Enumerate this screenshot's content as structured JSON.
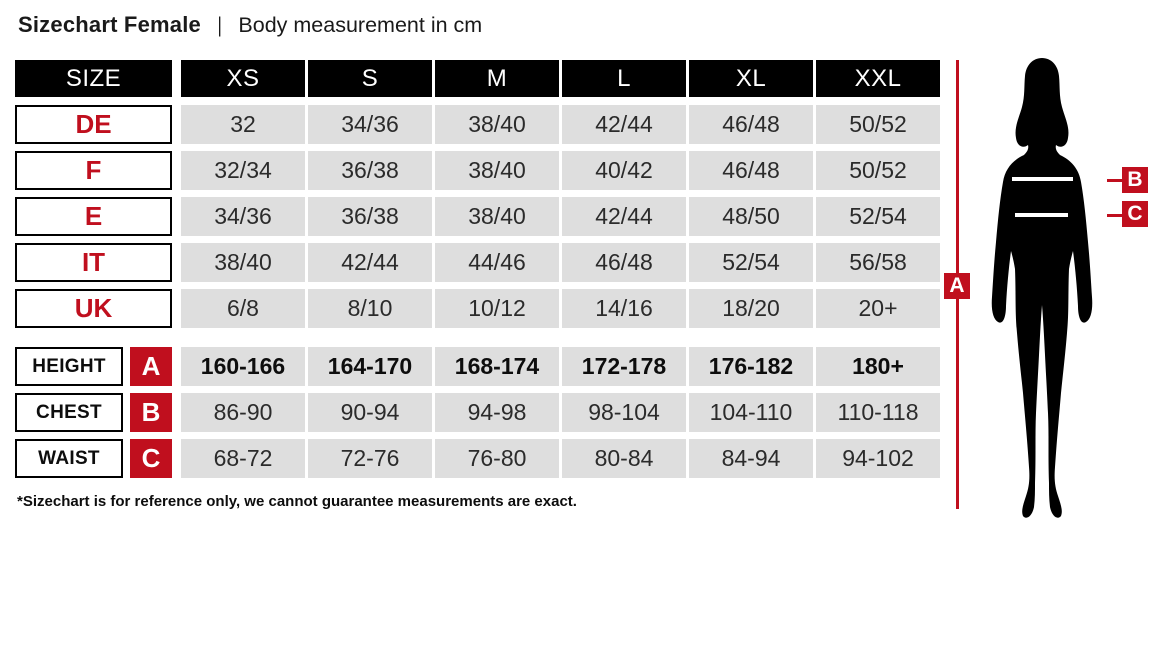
{
  "title": {
    "main": "Sizechart Female",
    "separator": "|",
    "subtitle": "Body measurement in cm"
  },
  "table": {
    "size_header": "SIZE",
    "columns": [
      "XS",
      "S",
      "M",
      "L",
      "XL",
      "XXL"
    ],
    "region_rows": [
      {
        "label": "DE",
        "values": [
          "32",
          "34/36",
          "38/40",
          "42/44",
          "46/48",
          "50/52"
        ]
      },
      {
        "label": "F",
        "values": [
          "32/34",
          "36/38",
          "38/40",
          "40/42",
          "46/48",
          "50/52"
        ]
      },
      {
        "label": "E",
        "values": [
          "34/36",
          "36/38",
          "38/40",
          "42/44",
          "48/50",
          "52/54"
        ]
      },
      {
        "label": "IT",
        "values": [
          "38/40",
          "42/44",
          "44/46",
          "46/48",
          "52/54",
          "56/58"
        ]
      },
      {
        "label": "UK",
        "values": [
          "6/8",
          "8/10",
          "10/12",
          "14/16",
          "18/20",
          "20+"
        ]
      }
    ],
    "measurement_rows": [
      {
        "label": "HEIGHT",
        "marker": "A",
        "bold": true,
        "values": [
          "160-166",
          "164-170",
          "168-174",
          "172-178",
          "176-182",
          "180+"
        ]
      },
      {
        "label": "CHEST",
        "marker": "B",
        "bold": false,
        "values": [
          "86-90",
          "90-94",
          "94-98",
          "98-104",
          "104-110",
          "110-118"
        ]
      },
      {
        "label": "WAIST",
        "marker": "C",
        "bold": false,
        "values": [
          "68-72",
          "72-76",
          "76-80",
          "80-84",
          "84-94",
          "94-102"
        ]
      }
    ]
  },
  "footnote": "*Sizechart is for reference only, we cannot guarantee measurements are exact.",
  "figure": {
    "markers": {
      "height": "A",
      "chest": "B",
      "waist": "C"
    }
  },
  "colors": {
    "accent_red": "#c00f1e",
    "cell_gray": "#dedede",
    "header_black": "#000000"
  }
}
